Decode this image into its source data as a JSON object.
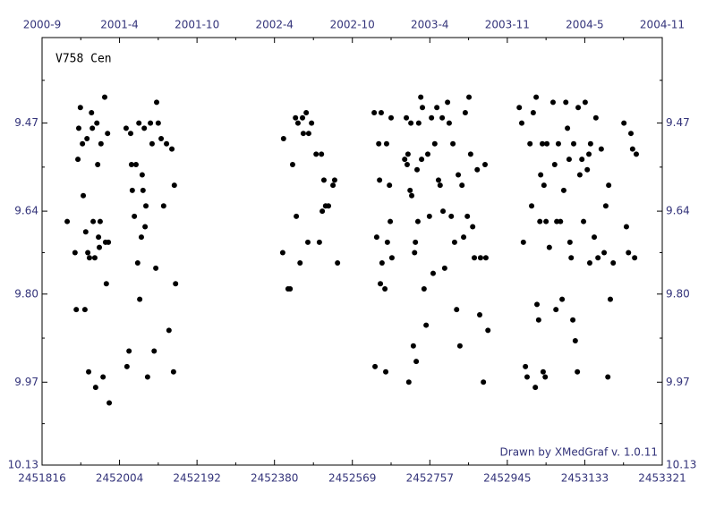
{
  "chart_data": {
    "type": "scatter",
    "title": "V758 Cen",
    "credit": "Drawn by XMedGraf v. 1.0.11",
    "color": "#000000",
    "y_inverted": true,
    "xlim": [
      2451816,
      2453321
    ],
    "ylim": [
      9.305,
      10.13
    ],
    "xticks": [
      2451816,
      2452004,
      2452192,
      2452380,
      2452569,
      2452757,
      2452945,
      2453133,
      2453321
    ],
    "x2ticks": [
      {
        "value": 2451816,
        "label": "2000-9"
      },
      {
        "value": 2452004,
        "label": "2001-4"
      },
      {
        "value": 2452192,
        "label": "2001-10"
      },
      {
        "value": 2452380,
        "label": "2002-4"
      },
      {
        "value": 2452569,
        "label": "2002-10"
      },
      {
        "value": 2452757,
        "label": "2003-4"
      },
      {
        "value": 2452945,
        "label": "2003-11"
      },
      {
        "value": 2453133,
        "label": "2004-5"
      },
      {
        "value": 2453321,
        "label": "2004-11"
      }
    ],
    "yticks": [
      9.47,
      9.64,
      {
        "value": 9.8,
        "label": "9.80"
      },
      9.97,
      10.13
    ],
    "x": [
      2451877,
      2451899,
      2451896,
      2451905,
      2451903,
      2451909,
      2451914,
      2451916,
      2451920,
      2451922,
      2451925,
      2451927,
      2451929,
      2451931,
      2451936,
      2451938,
      2451940,
      2451944,
      2451946,
      2451949,
      2451951,
      2451953,
      2451955,
      2451957,
      2451959,
      2451964,
      2451968,
      2451970,
      2451972,
      2451975,
      2451977,
      2451979,
      2452020,
      2452022,
      2452027,
      2452031,
      2452033,
      2452035,
      2452040,
      2452044,
      2452048,
      2452051,
      2452053,
      2452057,
      2452059,
      2452061,
      2452064,
      2452066,
      2452068,
      2452072,
      2452079,
      2452083,
      2452088,
      2452092,
      2452094,
      2452098,
      2452105,
      2452111,
      2452118,
      2452124,
      2452131,
      2452135,
      2452137,
      2452140,
      2452400,
      2452402,
      2452413,
      2452418,
      2452424,
      2452431,
      2452433,
      2452437,
      2452442,
      2452448,
      2452450,
      2452457,
      2452461,
      2452463,
      2452470,
      2452481,
      2452489,
      2452494,
      2452496,
      2452500,
      2452504,
      2452511,
      2452522,
      2452526,
      2452533,
      2452622,
      2452624,
      2452628,
      2452633,
      2452635,
      2452637,
      2452639,
      2452641,
      2452648,
      2452650,
      2452652,
      2452654,
      2452659,
      2452661,
      2452663,
      2452665,
      2452696,
      2452700,
      2452702,
      2452704,
      2452706,
      2452709,
      2452711,
      2452713,
      2452717,
      2452720,
      2452722,
      2452724,
      2452726,
      2452728,
      2452730,
      2452735,
      2452737,
      2452739,
      2452743,
      2452748,
      2452752,
      2452756,
      2452761,
      2452765,
      2452769,
      2452774,
      2452778,
      2452782,
      2452787,
      2452789,
      2452793,
      2452800,
      2452804,
      2452809,
      2452813,
      2452817,
      2452822,
      2452826,
      2452830,
      2452835,
      2452839,
      2452843,
      2452848,
      2452852,
      2452856,
      2452861,
      2452865,
      2452872,
      2452878,
      2452880,
      2452887,
      2452891,
      2452893,
      2452898,
      2452974,
      2452980,
      2452984,
      2452989,
      2452993,
      2453000,
      2453004,
      2453008,
      2453013,
      2453015,
      2453017,
      2453021,
      2453024,
      2453026,
      2453030,
      2453032,
      2453034,
      2453037,
      2453039,
      2453041,
      2453047,
      2453056,
      2453060,
      2453063,
      2453065,
      2453069,
      2453074,
      2453078,
      2453082,
      2453087,
      2453091,
      2453095,
      2453097,
      2453100,
      2453104,
      2453106,
      2453110,
      2453115,
      2453117,
      2453121,
      2453126,
      2453130,
      2453134,
      2453139,
      2453143,
      2453145,
      2453147,
      2453156,
      2453160,
      2453165,
      2453173,
      2453180,
      2453184,
      2453189,
      2453191,
      2453195,
      2453202,
      2453228,
      2453234,
      2453239,
      2453245,
      2453249,
      2453254,
      2453258
    ],
    "values": [
      9.66,
      9.83,
      9.72,
      9.48,
      9.54,
      9.44,
      9.51,
      9.61,
      9.83,
      9.68,
      9.5,
      9.72,
      9.95,
      9.73,
      9.45,
      9.48,
      9.66,
      9.73,
      9.98,
      9.47,
      9.55,
      9.69,
      9.71,
      9.66,
      9.51,
      9.96,
      9.42,
      9.7,
      9.78,
      9.49,
      9.7,
      10.01,
      9.48,
      9.94,
      9.91,
      9.49,
      9.55,
      9.6,
      9.65,
      9.55,
      9.74,
      9.47,
      9.81,
      9.69,
      9.57,
      9.6,
      9.48,
      9.67,
      9.63,
      9.96,
      9.47,
      9.51,
      9.91,
      9.75,
      9.43,
      9.47,
      9.5,
      9.63,
      9.51,
      9.87,
      9.52,
      9.95,
      9.59,
      9.78,
      9.72,
      9.5,
      9.79,
      9.79,
      9.55,
      9.46,
      9.65,
      9.47,
      9.74,
      9.46,
      9.49,
      9.45,
      9.7,
      9.49,
      9.47,
      9.53,
      9.7,
      9.53,
      9.64,
      9.58,
      9.63,
      9.63,
      9.59,
      9.58,
      9.74,
      9.45,
      9.94,
      9.69,
      9.51,
      9.58,
      9.78,
      9.45,
      9.74,
      9.79,
      9.95,
      9.51,
      9.7,
      9.59,
      9.66,
      9.46,
      9.73,
      9.54,
      9.46,
      9.55,
      9.53,
      9.97,
      9.6,
      9.47,
      9.61,
      9.9,
      9.72,
      9.7,
      9.93,
      9.56,
      9.66,
      9.47,
      9.42,
      9.54,
      9.44,
      9.79,
      9.86,
      9.53,
      9.65,
      9.46,
      9.76,
      9.51,
      9.44,
      9.58,
      9.59,
      9.46,
      9.64,
      9.75,
      9.43,
      9.47,
      9.65,
      9.51,
      9.7,
      9.83,
      9.57,
      9.9,
      9.59,
      9.69,
      9.45,
      9.65,
      9.42,
      9.53,
      9.67,
      9.73,
      9.56,
      9.84,
      9.73,
      9.97,
      9.55,
      9.73,
      9.87,
      9.44,
      9.47,
      9.7,
      9.94,
      9.96,
      9.51,
      9.63,
      9.45,
      9.98,
      9.42,
      9.82,
      9.85,
      9.66,
      9.57,
      9.51,
      9.95,
      9.59,
      9.96,
      9.66,
      9.51,
      9.71,
      9.43,
      9.55,
      9.83,
      9.66,
      9.51,
      9.66,
      9.81,
      9.6,
      9.43,
      9.48,
      9.54,
      9.7,
      9.73,
      9.85,
      9.51,
      9.89,
      9.95,
      9.44,
      9.57,
      9.54,
      9.66,
      9.43,
      9.56,
      9.53,
      9.74,
      9.51,
      9.69,
      9.46,
      9.73,
      9.52,
      9.72,
      9.63,
      9.96,
      9.59,
      9.81,
      9.74,
      9.47,
      9.67,
      9.72,
      9.49,
      9.52,
      9.73,
      9.53
    ]
  }
}
